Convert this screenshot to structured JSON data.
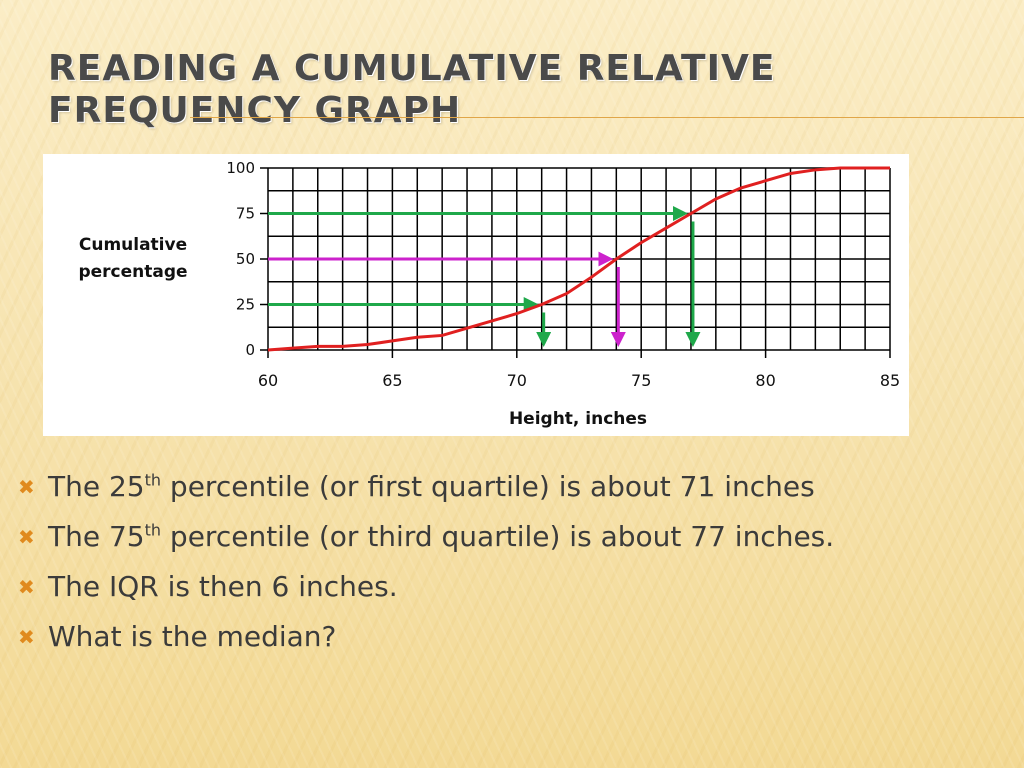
{
  "slide": {
    "title": "Reading  a Cumulative Relative Frequency Graph"
  },
  "chart_data": {
    "type": "line",
    "ylabel_line1": "Cumulative",
    "ylabel_line2": "percentage",
    "xlabel": "Height, inches",
    "xlim": [
      60,
      85
    ],
    "ylim": [
      0,
      100
    ],
    "x_ticks": [
      60,
      65,
      70,
      75,
      80,
      85
    ],
    "y_ticks": [
      0,
      25,
      50,
      75,
      100
    ],
    "grid": true,
    "line_color": "#e02020",
    "series": [
      {
        "x": [
          60,
          61,
          62,
          63,
          64,
          65,
          66,
          67,
          68,
          69,
          70,
          71,
          72,
          73,
          74,
          75,
          76,
          77,
          78,
          79,
          80,
          81,
          82,
          83,
          84,
          85
        ],
        "y": [
          0,
          1,
          2,
          2,
          3,
          5,
          7,
          8,
          12,
          16,
          20,
          25,
          31,
          40,
          50,
          59,
          67,
          75,
          83,
          89,
          93,
          97,
          99,
          100,
          100,
          100
        ]
      }
    ],
    "annotations": [
      {
        "name": "q1",
        "percent": 25,
        "x": 71,
        "color": "#1fa84a"
      },
      {
        "name": "median",
        "percent": 50,
        "x": 74,
        "color": "#cc22cc"
      },
      {
        "name": "q3",
        "percent": 75,
        "x": 77,
        "color": "#1fa84a"
      }
    ]
  },
  "bullets": [
    {
      "pre": "The 25",
      "sup": "th",
      "post": " percentile (or first quartile) is about 71 inches"
    },
    {
      "pre": "The 75",
      "sup": "th",
      "post": " percentile (or third quartile) is about 77 inches."
    },
    {
      "pre": "The IQR is then 6 inches.",
      "sup": "",
      "post": ""
    },
    {
      "pre": "What is the median?",
      "sup": "",
      "post": ""
    }
  ],
  "icons": {
    "bullet": "x-mark-icon"
  }
}
